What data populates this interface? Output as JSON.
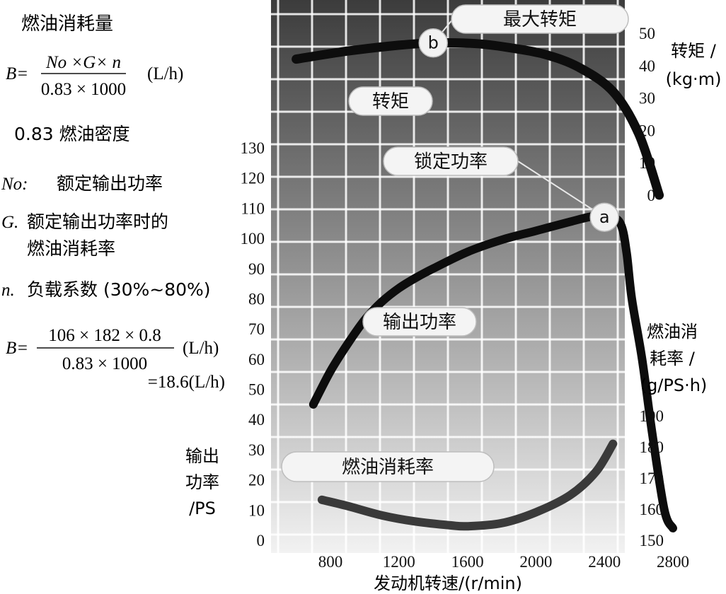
{
  "formula": {
    "heading": "燃油消耗量",
    "eq1_lhs": "B=",
    "eq1_num": "No ×G× n",
    "eq1_den": "0.83 × 1000",
    "eq1_unit": "(L/h)",
    "density_note": "0.83 燃油密度",
    "no_sym": "No:",
    "no_text": "额定输出功率",
    "g_sym": "G.",
    "g_text1": "额定输出功率时的",
    "g_text2": "燃油消耗率",
    "n_sym": "n.",
    "n_text": "负载系数 (30%~80%)",
    "eq2_lhs": "B=",
    "eq2_num": "106 × 182 × 0.8",
    "eq2_den": "0.83 × 1000",
    "eq2_unit": "(L/h)",
    "eq2_result": "=18.6(L/h)"
  },
  "chart_data": {
    "type": "line",
    "xlabel": "发动机转速/(r/min)",
    "x_ticks": [
      800,
      1200,
      1600,
      2000,
      2400,
      2800
    ],
    "xlim": [
      600,
      2800
    ],
    "grid": true,
    "axes": {
      "power": {
        "label_lines": [
          "输出",
          "功率",
          "/PS"
        ],
        "ticks": [
          0,
          10,
          20,
          30,
          40,
          50,
          60,
          70,
          80,
          90,
          100,
          110,
          120,
          130
        ],
        "ylim": [
          0,
          130
        ]
      },
      "torque": {
        "label_lines": [
          "转矩 /",
          "(kg·m)"
        ],
        "ticks": [
          0,
          10,
          20,
          30,
          40,
          50
        ],
        "ylim": [
          0,
          50
        ]
      },
      "fuel": {
        "label_lines": [
          "燃油消",
          "耗率 /",
          "(g/PS·h)"
        ],
        "ticks": [
          150,
          160,
          170,
          180,
          190
        ],
        "ylim": [
          150,
          190
        ]
      }
    },
    "series": [
      {
        "name": "转矩",
        "axis": "torque",
        "color": "#0d0d0d",
        "x": [
          600,
          900,
          1200,
          1400,
          1650,
          1850,
          2050,
          2250,
          2450,
          2600,
          2720
        ],
        "y": [
          42,
          44.5,
          46.3,
          47,
          46.8,
          45.5,
          43.5,
          39.5,
          32,
          19,
          0
        ]
      },
      {
        "name": "输出功率",
        "axis": "power",
        "color": "#0d0d0d",
        "x": [
          700,
          800,
          900,
          1000,
          1100,
          1200,
          1300,
          1400,
          1600,
          1800,
          2000,
          2200,
          2350,
          2450,
          2500,
          2530,
          2560,
          2620,
          2680,
          2750,
          2800
        ],
        "y": [
          45,
          56,
          65,
          73,
          79,
          83.5,
          87,
          90,
          95.5,
          99.5,
          102.5,
          105.5,
          107.5,
          107,
          104,
          95,
          80,
          60,
          35,
          10,
          4
        ]
      },
      {
        "name": "燃油消耗率",
        "axis": "fuel",
        "color": "#3a3a3a",
        "x": [
          750,
          900,
          1100,
          1300,
          1500,
          1600,
          1800,
          2000,
          2200,
          2350,
          2450
        ],
        "y": [
          163,
          161,
          158,
          156,
          154.8,
          154.5,
          155.5,
          159,
          164.5,
          172,
          181
        ]
      }
    ],
    "annotations": [
      {
        "text": "最大转矩",
        "marker": "b",
        "series": "转矩",
        "x": 1400,
        "y": 47
      },
      {
        "text": "锁定功率",
        "marker": "a",
        "series": "输出功率",
        "x": 2400,
        "y": 107
      }
    ],
    "curve_labels": [
      "转矩",
      "输出功率",
      "燃油消耗率"
    ]
  }
}
